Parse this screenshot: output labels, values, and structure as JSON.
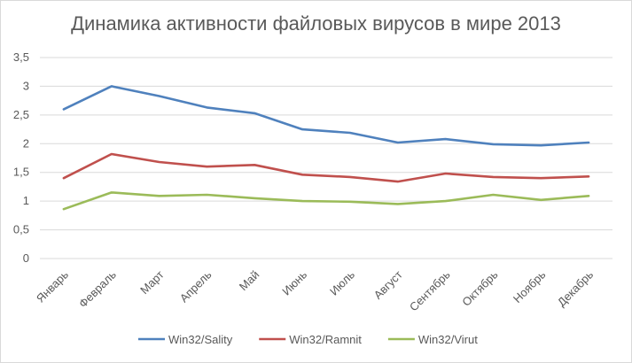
{
  "chart_data": {
    "type": "line",
    "title": "Динамика активности файловых вирусов в мире 2013",
    "categories": [
      "Январь",
      "Февраль",
      "Март",
      "Апрель",
      "Май",
      "Июнь",
      "Июль",
      "Август",
      "Сентябрь",
      "Октябрь",
      "Ноябрь",
      "Декабрь"
    ],
    "series": [
      {
        "name": "Win32/Sality",
        "color": "#4f81bd",
        "values": [
          2.6,
          3.0,
          2.83,
          2.63,
          2.53,
          2.25,
          2.19,
          2.02,
          2.08,
          1.99,
          1.97,
          2.02
        ]
      },
      {
        "name": "Win32/Ramnit",
        "color": "#c0504d",
        "values": [
          1.4,
          1.82,
          1.68,
          1.6,
          1.63,
          1.46,
          1.42,
          1.34,
          1.48,
          1.42,
          1.4,
          1.43
        ]
      },
      {
        "name": "Win32/Virut",
        "color": "#9bbb59",
        "values": [
          0.86,
          1.15,
          1.09,
          1.11,
          1.05,
          1.0,
          0.99,
          0.95,
          1.0,
          1.11,
          1.02,
          1.09
        ]
      }
    ],
    "y_ticks": [
      "0",
      "0,5",
      "1",
      "1,5",
      "2",
      "2,5",
      "3",
      "3,5"
    ],
    "ylim": [
      0,
      3.5
    ],
    "grid": true,
    "legend_position": "bottom",
    "xlabel": "",
    "ylabel": ""
  }
}
